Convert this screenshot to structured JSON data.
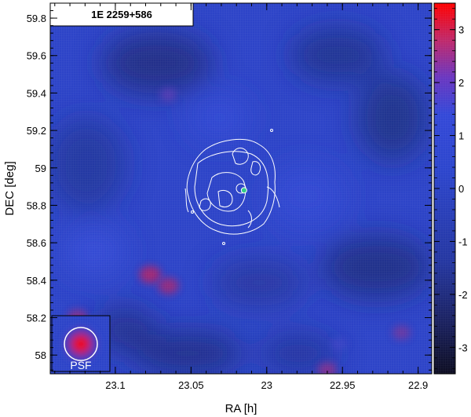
{
  "chart_data": {
    "type": "heatmap",
    "title": "1E 2259+586",
    "xlabel": "RA [h]",
    "ylabel": "DEC [deg]",
    "x_ticks": [
      23.1,
      23.05,
      23,
      22.95,
      22.9
    ],
    "x_tick_labels": [
      "23.1",
      "23.05",
      "23",
      "22.95",
      "22.9"
    ],
    "y_ticks": [
      58,
      58.2,
      58.4,
      58.6,
      58.8,
      59,
      59.2,
      59.4,
      59.6,
      59.8
    ],
    "y_tick_labels": [
      "58",
      "58.2",
      "58.4",
      "58.6",
      "58.8",
      "59",
      "59.2",
      "59.4",
      "59.6",
      "59.8"
    ],
    "xlim": [
      23.143,
      22.891
    ],
    "ylim": [
      57.9,
      59.88
    ],
    "colorbar": {
      "range": [
        -3.5,
        3.5
      ],
      "ticks": [
        3,
        2,
        1,
        0,
        -1,
        -2,
        -3
      ],
      "tick_labels": [
        "3",
        "2",
        "1",
        "0",
        "-1",
        "-2",
        "-3"
      ],
      "colors": [
        "#0d0d22",
        "#1e2a6e",
        "#2a3fb5",
        "#2f48d2",
        "#6a36c0",
        "#c0286a",
        "#ff0000"
      ]
    },
    "hotspots": [
      {
        "ra": 23.077,
        "dec": 58.43,
        "value": 2.6
      },
      {
        "ra": 23.065,
        "dec": 58.37,
        "value": 2.4
      },
      {
        "ra": 23.125,
        "dec": 58.2,
        "value": 2.2
      },
      {
        "ra": 22.96,
        "dec": 57.92,
        "value": 2.1
      },
      {
        "ra": 22.911,
        "dec": 58.12,
        "value": 1.8
      },
      {
        "ra": 23.065,
        "dec": 59.39,
        "value": 1.5
      },
      {
        "ra": 22.952,
        "dec": 58.06,
        "value": 1.2
      }
    ],
    "source_marker": {
      "ra": 23.015,
      "dec": 58.88
    },
    "inset_label": "PSF"
  }
}
